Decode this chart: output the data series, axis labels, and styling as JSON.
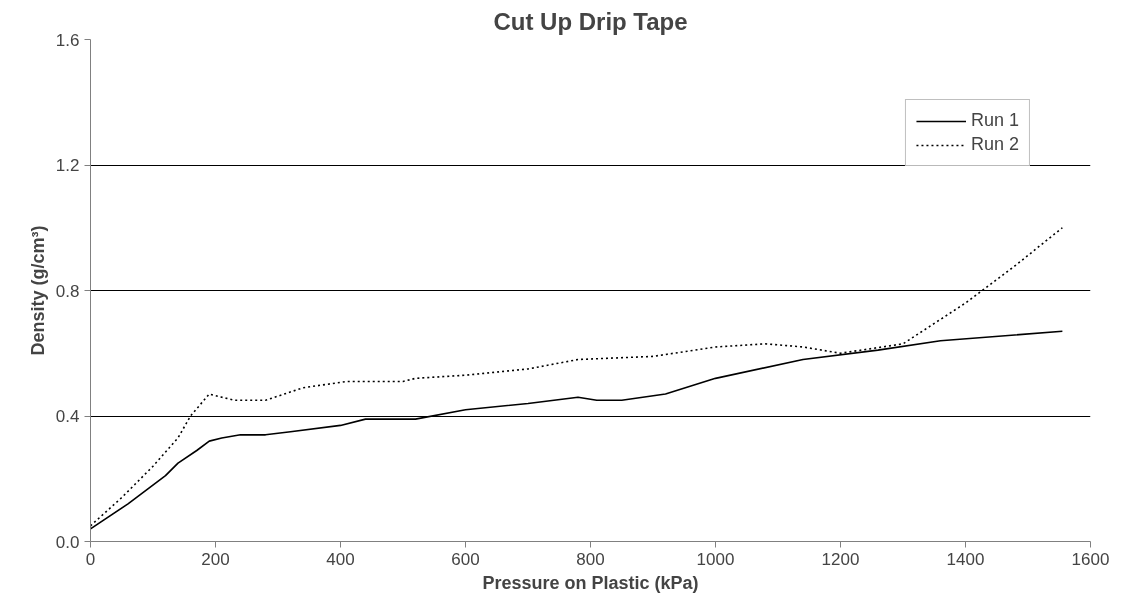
{
  "chart_data": {
    "type": "line",
    "title": "Cut Up Drip Tape",
    "xlabel": "Pressure on Plastic (kPa)",
    "ylabel": "Density (g/cm³)",
    "xlim": [
      0,
      1600
    ],
    "xticks": [
      0,
      200,
      400,
      600,
      800,
      1000,
      1200,
      1400,
      1600
    ],
    "ylim": [
      0,
      1.6
    ],
    "yticks": [
      {
        "value": 0,
        "label": "0.0"
      },
      {
        "value": 0.4,
        "label": "0.4"
      },
      {
        "value": 0.8,
        "label": "0.8"
      },
      {
        "value": 1.2,
        "label": "1.2"
      },
      {
        "value": 1.6,
        "label": "1.6"
      }
    ],
    "grid": "y",
    "legend": "top right",
    "series": [
      {
        "name": "Run 1",
        "color": "#000000",
        "line_style": "solid",
        "x": [
          0,
          60,
          120,
          140,
          170,
          190,
          210,
          240,
          280,
          320,
          400,
          440,
          520,
          600,
          700,
          780,
          810,
          850,
          920,
          1000,
          1140,
          1260,
          1360,
          1555
        ],
        "values": [
          0.04,
          0.12,
          0.21,
          0.25,
          0.29,
          0.32,
          0.33,
          0.34,
          0.34,
          0.35,
          0.37,
          0.39,
          0.39,
          0.42,
          0.44,
          0.46,
          0.45,
          0.45,
          0.47,
          0.52,
          0.58,
          0.61,
          0.64,
          0.67
        ]
      },
      {
        "name": "Run 2",
        "color": "#000000",
        "line_style": "dotted",
        "x": [
          0,
          50,
          100,
          140,
          160,
          190,
          210,
          230,
          280,
          340,
          410,
          500,
          520,
          600,
          700,
          780,
          900,
          1000,
          1080,
          1140,
          1200,
          1300,
          1400,
          1480,
          1555
        ],
        "values": [
          0.05,
          0.14,
          0.24,
          0.33,
          0.4,
          0.47,
          0.46,
          0.45,
          0.45,
          0.49,
          0.51,
          0.51,
          0.52,
          0.53,
          0.55,
          0.58,
          0.59,
          0.62,
          0.63,
          0.62,
          0.6,
          0.63,
          0.76,
          0.88,
          1.0
        ]
      }
    ]
  }
}
